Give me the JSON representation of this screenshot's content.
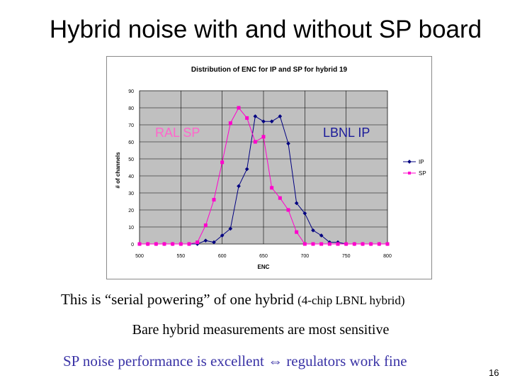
{
  "slide": {
    "title": "Hybrid noise with and without SP board",
    "line1_main": "This is “serial powering” of one hybrid",
    "line1_note": "(4-chip LBNL hybrid)",
    "line2": "Bare hybrid measurements are most sensitive",
    "line3_left": "SP noise performance is excellent",
    "line3_arrow": "⇔",
    "line3_right": "regulators work fine",
    "page_number": "16"
  },
  "chart_data": {
    "type": "line",
    "title": "Distribution of ENC for IP and SP for hybrid 19",
    "xlabel": "ENC",
    "ylabel": "# of channels",
    "xlim": [
      500,
      800
    ],
    "ylim": [
      0,
      90
    ],
    "xticks": [
      500,
      550,
      600,
      650,
      700,
      750,
      800
    ],
    "yticks": [
      0,
      10,
      20,
      30,
      40,
      50,
      60,
      70,
      80,
      90
    ],
    "grid": true,
    "legend": "right",
    "annotations": [
      {
        "text": "RAL SP",
        "color": "#ff66cc"
      },
      {
        "text": "LBNL IP",
        "color": "#1a1a99"
      }
    ],
    "x": [
      500,
      510,
      520,
      530,
      540,
      550,
      560,
      570,
      580,
      590,
      600,
      610,
      620,
      630,
      640,
      650,
      660,
      670,
      680,
      690,
      700,
      710,
      720,
      730,
      740,
      750,
      760,
      770,
      780,
      790,
      800
    ],
    "series": [
      {
        "name": "IP",
        "color": "#000080",
        "marker": "diamond",
        "values": [
          0,
          0,
          0,
          0,
          0,
          0,
          0,
          0,
          2,
          1,
          5,
          9,
          34,
          44,
          75,
          72,
          72,
          75,
          59,
          24,
          18,
          8,
          5,
          1,
          1,
          0,
          0,
          0,
          0,
          0,
          0
        ]
      },
      {
        "name": "SP",
        "color": "#ff00cc",
        "marker": "square",
        "values": [
          0,
          0,
          0,
          0,
          0,
          0,
          0,
          1,
          11,
          26,
          48,
          71,
          80,
          74,
          60,
          63,
          33,
          27,
          20,
          7,
          0,
          0,
          0,
          0,
          0,
          0,
          0,
          0,
          0,
          0,
          0
        ]
      }
    ]
  }
}
